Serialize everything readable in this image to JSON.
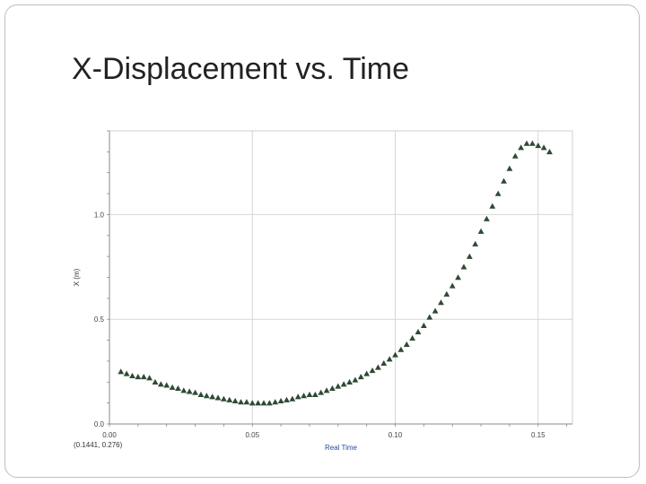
{
  "slide": {
    "title": "X-Displacement vs. Time"
  },
  "chart_data": {
    "type": "scatter",
    "title": "",
    "xlabel": "Real Time",
    "ylabel": "X (m)",
    "xlim": [
      0.0,
      0.162
    ],
    "ylim": [
      0.0,
      1.4
    ],
    "x_ticks": [
      0.0,
      0.05,
      0.1,
      0.15
    ],
    "x_tick_labels": [
      "0.00",
      "0.05",
      "0.10",
      "0.15"
    ],
    "y_ticks": [
      0.0,
      0.5,
      1.0
    ],
    "y_tick_labels": [
      "0.0",
      "0.5",
      "1.0"
    ],
    "grid": true,
    "legend": "none",
    "marker": "triangle",
    "marker_color": "#2f4a33",
    "coordinate_readout": "(0.1441, 0.276)",
    "series": [
      {
        "x": [
          0.004,
          0.006,
          0.008,
          0.01,
          0.012,
          0.014,
          0.016,
          0.018,
          0.02,
          0.022,
          0.024,
          0.026,
          0.028,
          0.03,
          0.032,
          0.034,
          0.036,
          0.038,
          0.04,
          0.042,
          0.044,
          0.046,
          0.048,
          0.05,
          0.052,
          0.054,
          0.056,
          0.058,
          0.06,
          0.062,
          0.064,
          0.066,
          0.068,
          0.07,
          0.072,
          0.074,
          0.076,
          0.078,
          0.08,
          0.082,
          0.084,
          0.086,
          0.088,
          0.09,
          0.092,
          0.094,
          0.096,
          0.098,
          0.1,
          0.102,
          0.104,
          0.106,
          0.108,
          0.11,
          0.112,
          0.114,
          0.116,
          0.118,
          0.12,
          0.122,
          0.124,
          0.126,
          0.128,
          0.13,
          0.132,
          0.134,
          0.136,
          0.138,
          0.14,
          0.142,
          0.144,
          0.146,
          0.148,
          0.15,
          0.152,
          0.154
        ],
        "y": [
          0.25,
          0.24,
          0.23,
          0.225,
          0.225,
          0.22,
          0.2,
          0.19,
          0.185,
          0.175,
          0.17,
          0.16,
          0.155,
          0.15,
          0.14,
          0.135,
          0.13,
          0.125,
          0.12,
          0.115,
          0.11,
          0.105,
          0.105,
          0.1,
          0.1,
          0.1,
          0.1,
          0.105,
          0.11,
          0.115,
          0.12,
          0.13,
          0.135,
          0.14,
          0.14,
          0.15,
          0.16,
          0.17,
          0.18,
          0.19,
          0.2,
          0.21,
          0.225,
          0.24,
          0.255,
          0.27,
          0.29,
          0.31,
          0.33,
          0.355,
          0.38,
          0.41,
          0.44,
          0.47,
          0.51,
          0.54,
          0.58,
          0.62,
          0.66,
          0.7,
          0.75,
          0.8,
          0.86,
          0.92,
          0.98,
          1.04,
          1.1,
          1.16,
          1.22,
          1.28,
          1.32,
          1.34,
          1.34,
          1.33,
          1.32,
          1.3
        ]
      }
    ]
  }
}
